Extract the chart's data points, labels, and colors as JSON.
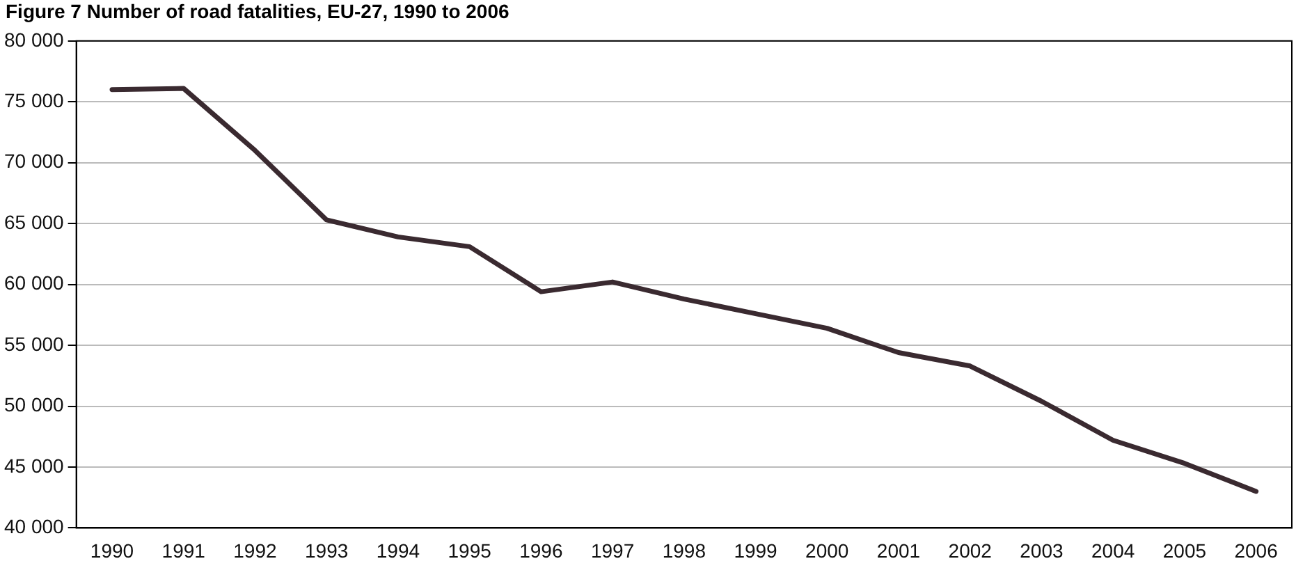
{
  "chart_data": {
    "type": "line",
    "title": "Figure 7  Number of road fatalities, EU-27, 1990 to 2006",
    "categories": [
      "1990",
      "1991",
      "1992",
      "1993",
      "1994",
      "1995",
      "1996",
      "1997",
      "1998",
      "1999",
      "2000",
      "2001",
      "2002",
      "2003",
      "2004",
      "2005",
      "2006"
    ],
    "series": [
      {
        "color": "#3a2a30",
        "values": [
          76000,
          76100,
          71000,
          65300,
          63900,
          63100,
          59400,
          60200,
          58800,
          57600,
          56400,
          54400,
          53300,
          50400,
          47200,
          45300,
          43000
        ]
      }
    ],
    "ylim": [
      40000,
      80000
    ],
    "yticks": [
      40000,
      45000,
      50000,
      55000,
      60000,
      65000,
      70000,
      75000,
      80000
    ],
    "grid": "y",
    "legend": false,
    "marker": "none",
    "line_style": "solid"
  }
}
